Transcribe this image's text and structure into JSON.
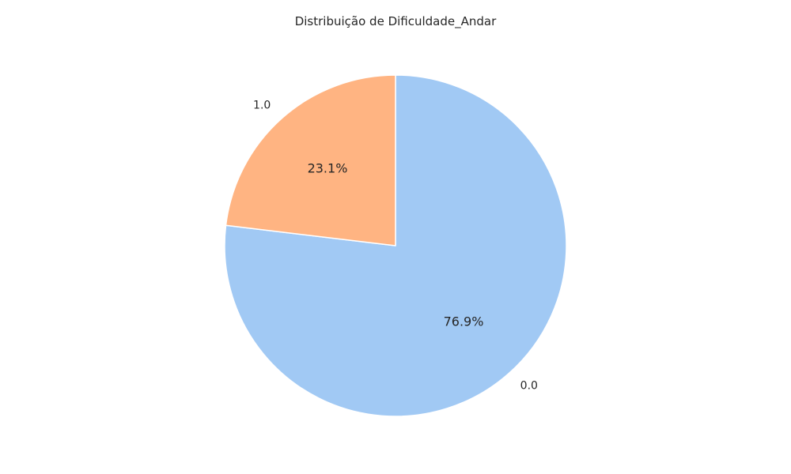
{
  "chart_data": {
    "type": "pie",
    "title": "Distribuição de Dificuldade_Andar",
    "slices": [
      {
        "label": "0.0",
        "percent": 76.9,
        "pct_text": "76.9%",
        "color": "#a1c9f4"
      },
      {
        "label": "1.0",
        "percent": 23.1,
        "pct_text": "23.1%",
        "color": "#ffb482"
      }
    ],
    "start_angle_deg": 90,
    "direction": "clockwise",
    "wedge_edge_color": "#ffffff"
  }
}
